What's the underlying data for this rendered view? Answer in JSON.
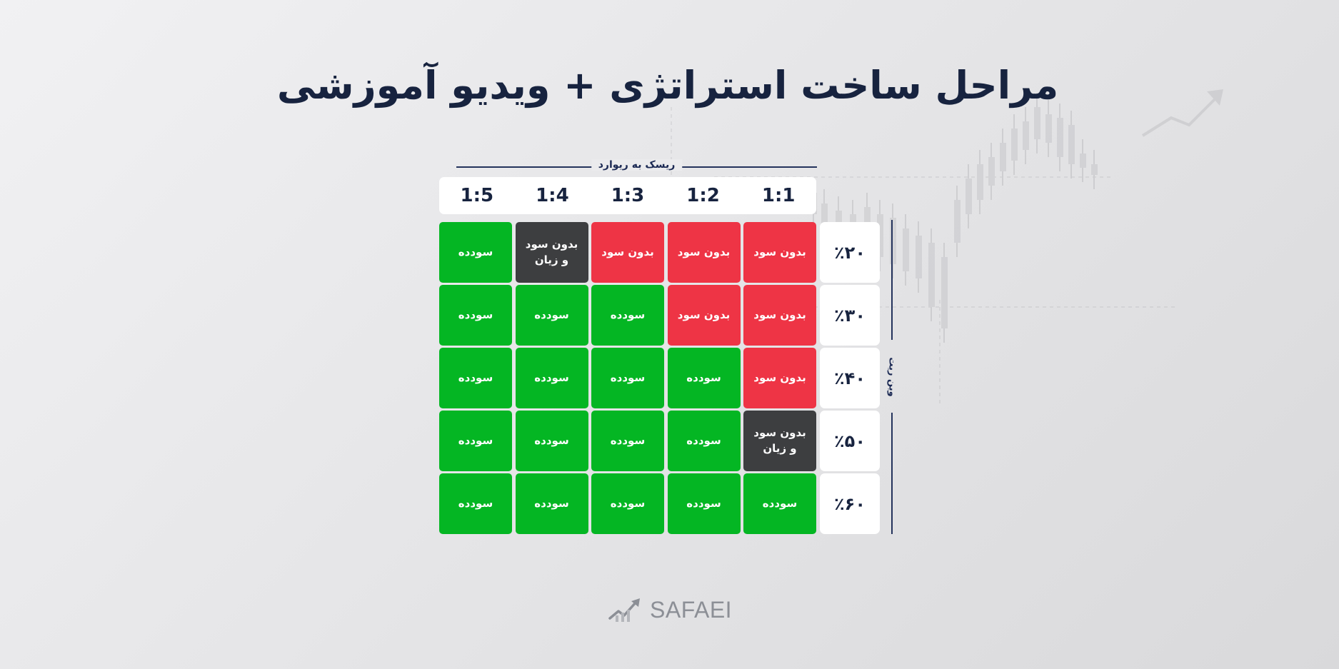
{
  "title": "مراحل ساخت استراتژی + ویدیو آموزشی",
  "risk_reward_label": "ریسک به ریوارد",
  "win_rate_label": "وین ریت",
  "columns": [
    "1:1",
    "1:2",
    "1:3",
    "1:4",
    "1:5"
  ],
  "rows": [
    {
      "label": "٪۲۰",
      "cells": [
        {
          "text": "بدون سود",
          "status": "loss"
        },
        {
          "text": "بدون سود",
          "status": "loss"
        },
        {
          "text": "بدون سود",
          "status": "loss"
        },
        {
          "text": "بدون سود\nو زیان",
          "status": "even"
        },
        {
          "text": "سودده",
          "status": "profit"
        }
      ]
    },
    {
      "label": "٪۳۰",
      "cells": [
        {
          "text": "بدون سود",
          "status": "loss"
        },
        {
          "text": "بدون سود",
          "status": "loss"
        },
        {
          "text": "سودده",
          "status": "profit"
        },
        {
          "text": "سودده",
          "status": "profit"
        },
        {
          "text": "سودده",
          "status": "profit"
        }
      ]
    },
    {
      "label": "٪۴۰",
      "cells": [
        {
          "text": "بدون سود",
          "status": "loss"
        },
        {
          "text": "سودده",
          "status": "profit"
        },
        {
          "text": "سودده",
          "status": "profit"
        },
        {
          "text": "سودده",
          "status": "profit"
        },
        {
          "text": "سودده",
          "status": "profit"
        }
      ]
    },
    {
      "label": "٪۵۰",
      "cells": [
        {
          "text": "بدون سود\nو زیان",
          "status": "even"
        },
        {
          "text": "سودده",
          "status": "profit"
        },
        {
          "text": "سودده",
          "status": "profit"
        },
        {
          "text": "سودده",
          "status": "profit"
        },
        {
          "text": "سودده",
          "status": "profit"
        }
      ]
    },
    {
      "label": "٪۶۰",
      "cells": [
        {
          "text": "سودده",
          "status": "profit"
        },
        {
          "text": "سودده",
          "status": "profit"
        },
        {
          "text": "سودده",
          "status": "profit"
        },
        {
          "text": "سودده",
          "status": "profit"
        },
        {
          "text": "سودده",
          "status": "profit"
        }
      ]
    }
  ],
  "logo": {
    "text": "SAFAEI",
    "icon": "chart-arrow-logo-icon"
  },
  "colors": {
    "profit": "#04b623",
    "loss": "#ee3445",
    "even": "#3d3e40",
    "title": "#17233f"
  }
}
